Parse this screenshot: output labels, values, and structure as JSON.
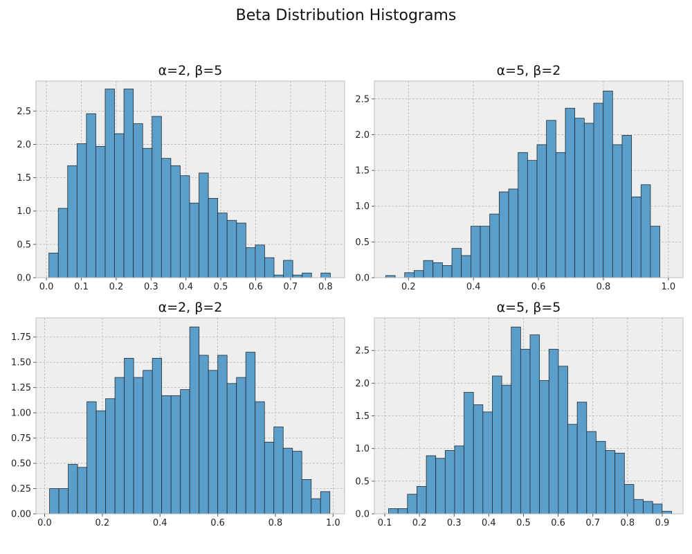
{
  "suptitle": "Beta Distribution Histograms",
  "style": {
    "bar_fill": "#5b9ec9",
    "bar_edge": "#1f2b33",
    "axes_bg": "#eeeeee",
    "grid": "#b8b8b8",
    "spine": "#bcbcbc"
  },
  "chart_data": [
    {
      "type": "bar",
      "title": "α=2, β=5",
      "xlim": [
        -0.03,
        0.855
      ],
      "ylim": [
        0,
        2.95
      ],
      "xticks": [
        "0.0",
        "0.1",
        "0.2",
        "0.3",
        "0.4",
        "0.5",
        "0.6",
        "0.7",
        "0.8"
      ],
      "yticks": [
        "0.0",
        "0.5",
        "1.0",
        "1.5",
        "2.0",
        "2.5"
      ],
      "grid": true,
      "bin_start": 0.007,
      "bin_width": 0.0269,
      "values": [
        0.37,
        1.04,
        1.68,
        2.01,
        2.46,
        1.97,
        2.83,
        2.16,
        2.83,
        2.31,
        1.94,
        2.42,
        1.79,
        1.68,
        1.53,
        1.12,
        1.57,
        1.19,
        0.97,
        0.86,
        0.82,
        0.45,
        0.49,
        0.3,
        0.04,
        0.26,
        0.04,
        0.07,
        0.0,
        0.07
      ]
    },
    {
      "type": "bar",
      "title": "α=5, β=2",
      "xlim": [
        0.095,
        1.045
      ],
      "ylim": [
        0,
        2.75
      ],
      "xticks": [
        "0.2",
        "0.4",
        "0.6",
        "0.8",
        "1.0"
      ],
      "yticks": [
        "0.0",
        "0.5",
        "1.0",
        "1.5",
        "2.0",
        "2.5"
      ],
      "grid": true,
      "bin_start": 0.13,
      "bin_width": 0.0291,
      "values": [
        0.03,
        0.0,
        0.07,
        0.1,
        0.24,
        0.21,
        0.17,
        0.41,
        0.31,
        0.72,
        0.72,
        0.89,
        1.2,
        1.24,
        1.75,
        1.64,
        1.86,
        2.2,
        1.75,
        2.37,
        2.23,
        2.16,
        2.44,
        2.61,
        1.86,
        1.99,
        1.13,
        1.3,
        0.72
      ]
    },
    {
      "type": "bar",
      "title": "α=2, β=2",
      "xlim": [
        -0.03,
        1.04
      ],
      "ylim": [
        0,
        1.94
      ],
      "xticks": [
        "0.0",
        "0.2",
        "0.4",
        "0.6",
        "0.8",
        "1.0"
      ],
      "yticks": [
        "0.00",
        "0.25",
        "0.50",
        "0.75",
        "1.00",
        "1.25",
        "1.50",
        "1.75"
      ],
      "grid": true,
      "bin_start": 0.017,
      "bin_width": 0.0324,
      "values": [
        0.25,
        0.25,
        0.49,
        0.46,
        1.11,
        1.02,
        1.14,
        1.35,
        1.54,
        1.35,
        1.42,
        1.54,
        1.17,
        1.17,
        1.23,
        1.85,
        1.57,
        1.42,
        1.57,
        1.29,
        1.35,
        1.6,
        1.11,
        0.71,
        0.86,
        0.65,
        0.62,
        0.34,
        0.15,
        0.22
      ]
    },
    {
      "type": "bar",
      "title": "α=5, β=5",
      "xlim": [
        0.07,
        0.96
      ],
      "ylim": [
        0,
        3.0
      ],
      "xticks": [
        "0.1",
        "0.2",
        "0.3",
        "0.4",
        "0.5",
        "0.6",
        "0.7",
        "0.8",
        "0.9"
      ],
      "yticks": [
        "0.0",
        "0.5",
        "1.0",
        "1.5",
        "2.0",
        "2.5"
      ],
      "grid": true,
      "bin_start": 0.111,
      "bin_width": 0.0272,
      "values": [
        0.08,
        0.08,
        0.3,
        0.42,
        0.89,
        0.85,
        0.97,
        1.04,
        1.86,
        1.67,
        1.56,
        2.11,
        1.97,
        2.86,
        2.52,
        2.74,
        2.04,
        2.52,
        2.26,
        1.37,
        1.71,
        1.26,
        1.11,
        0.97,
        0.93,
        0.45,
        0.22,
        0.19,
        0.15,
        0.04
      ]
    }
  ]
}
